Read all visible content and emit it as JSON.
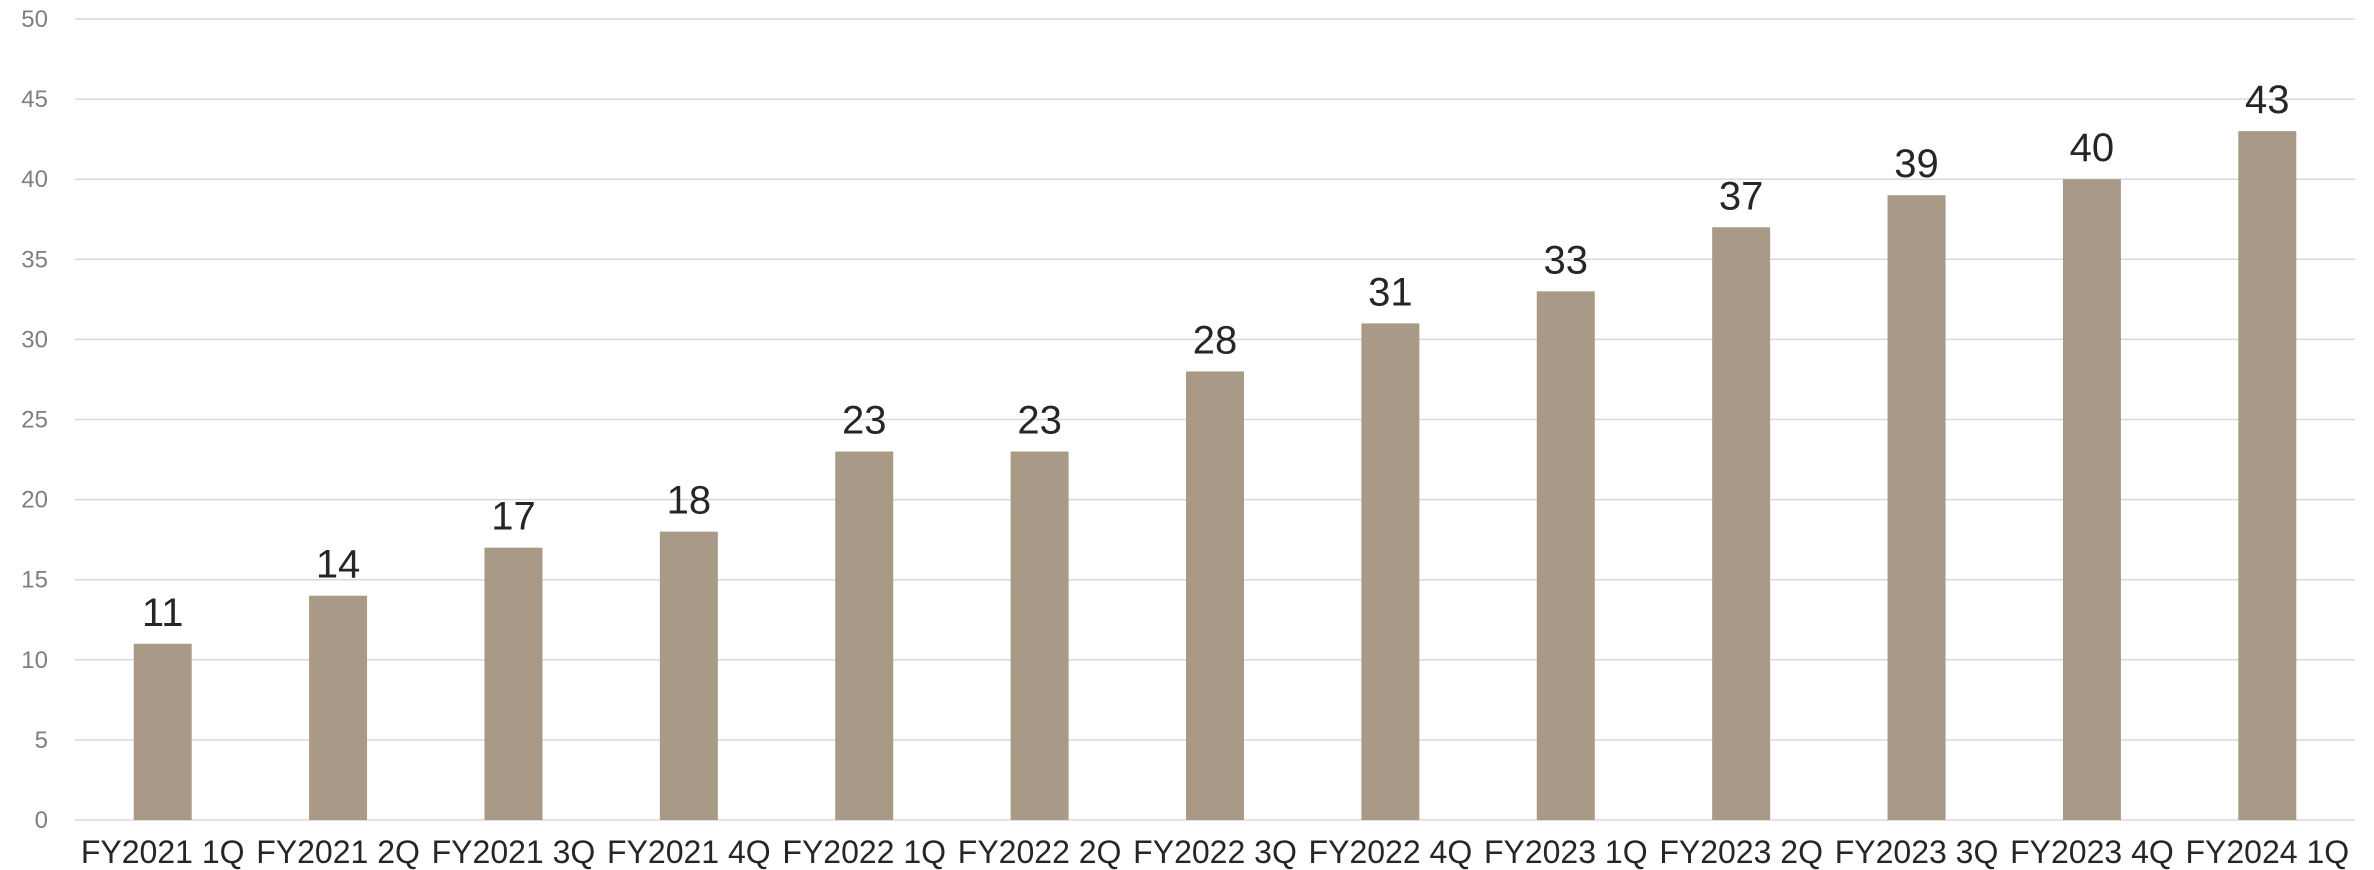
{
  "chart_data": {
    "type": "bar",
    "title": "",
    "xlabel": "",
    "ylabel": "",
    "categories": [
      "FY2021 1Q",
      "FY2021 2Q",
      "FY2021 3Q",
      "FY2021 4Q",
      "FY2022 1Q",
      "FY2022 2Q",
      "FY2022 3Q",
      "FY2022 4Q",
      "FY2023 1Q",
      "FY2023 2Q",
      "FY2023 3Q",
      "FY2023 4Q",
      "FY2024 1Q"
    ],
    "values": [
      11,
      14,
      17,
      18,
      23,
      23,
      28,
      31,
      33,
      37,
      39,
      40,
      43
    ],
    "data_labels": [
      "11",
      "14",
      "17",
      "18",
      "23",
      "23",
      "28",
      "31",
      "33",
      "37",
      "39",
      "40",
      "43"
    ],
    "ylim": [
      0,
      50
    ],
    "y_ticks": [
      "0",
      "5",
      "10",
      "15",
      "20",
      "25",
      "30",
      "35",
      "40",
      "45",
      "50"
    ],
    "grid": true,
    "legend": "none",
    "bar_color": "#a89a87"
  }
}
